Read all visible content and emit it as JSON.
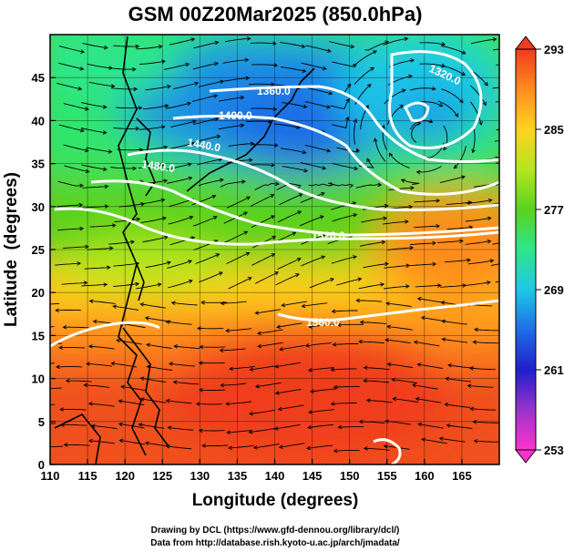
{
  "chart_data": {
    "type": "heatmap",
    "title": "GSM 00Z20Mar2025 (850.0hPa)",
    "xlabel": "Longitude (degrees)",
    "ylabel": "Latitude  (degrees)",
    "xlim": [
      110,
      170
    ],
    "ylim": [
      0,
      50
    ],
    "x_ticks": [
      110,
      115,
      120,
      125,
      130,
      135,
      140,
      145,
      150,
      155,
      160,
      165
    ],
    "y_ticks": [
      0,
      5,
      10,
      15,
      20,
      25,
      30,
      35,
      40,
      45
    ],
    "colorbar": {
      "min": 253,
      "max": 293,
      "ticks": [
        253,
        261,
        269,
        277,
        285,
        293
      ],
      "colors": [
        "#ff33cc",
        "#9933cc",
        "#1f1fcc",
        "#1e6ee6",
        "#1ec8e6",
        "#2ee68a",
        "#5ad21e",
        "#b4e61e",
        "#ffd21e",
        "#ff8c1e",
        "#f03c1e"
      ]
    },
    "contours": [
      {
        "label": "1320.0",
        "value": 1320.0
      },
      {
        "label": "1360.0",
        "value": 1360.0
      },
      {
        "label": "1400.0",
        "value": 1400.0
      },
      {
        "label": "1440.0",
        "value": 1440.0
      },
      {
        "label": "1480.0",
        "value": 1480.0
      },
      {
        "label": "1520.0",
        "value": 1520.0
      },
      {
        "label": "1560.0",
        "value": 1560.0
      }
    ]
  },
  "credits": {
    "line1": "Drawing by DCL (https://www.gfd-dennou.org/library/dcl/)",
    "line2": "Data from http://database.rish.kyoto-u.ac.jp/arch/jmadata/"
  }
}
